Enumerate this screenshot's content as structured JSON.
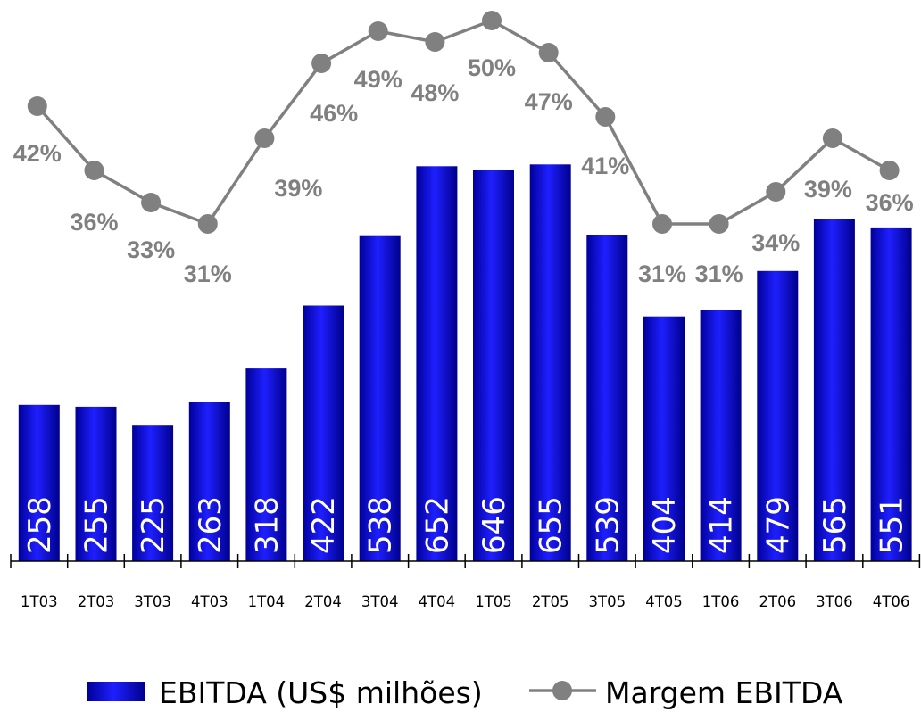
{
  "chart_data": {
    "type": "bar",
    "title": "",
    "categories": [
      "1T03",
      "2T03",
      "3T03",
      "4T03",
      "1T04",
      "2T04",
      "3T04",
      "4T04",
      "1T05",
      "2T05",
      "3T05",
      "4T05",
      "1T06",
      "2T06",
      "3T06",
      "4T06"
    ],
    "series": [
      {
        "name": "EBITDA (US$ milhões)",
        "type": "bar",
        "values": [
          258,
          255,
          225,
          263,
          318,
          422,
          538,
          652,
          646,
          655,
          539,
          404,
          414,
          479,
          565,
          551
        ],
        "labels": [
          "258",
          "255",
          "225",
          "263",
          "318",
          "422",
          "538",
          "652",
          "646",
          "655",
          "539",
          "404",
          "414",
          "479",
          "565",
          "551"
        ],
        "color": "#0000cc"
      },
      {
        "name": "Margem EBITDA",
        "type": "line",
        "values": [
          42,
          36,
          33,
          31,
          39,
          46,
          49,
          48,
          50,
          47,
          41,
          31,
          31,
          34,
          39,
          36
        ],
        "labels": [
          "42%",
          "36%",
          "33%",
          "31%",
          "39%",
          "46%",
          "49%",
          "48%",
          "50%",
          "47%",
          "41%",
          "31%",
          "31%",
          "34%",
          "39%",
          "36%"
        ],
        "unit": "%",
        "color": "#808080"
      }
    ],
    "legend": {
      "position": "bottom",
      "items": [
        "EBITDA (US$ milhões)",
        "Margem EBITDA"
      ]
    },
    "colors": {
      "bar_dark": "#00008f",
      "bar_light": "#2b2bff",
      "line": "#808080"
    }
  }
}
